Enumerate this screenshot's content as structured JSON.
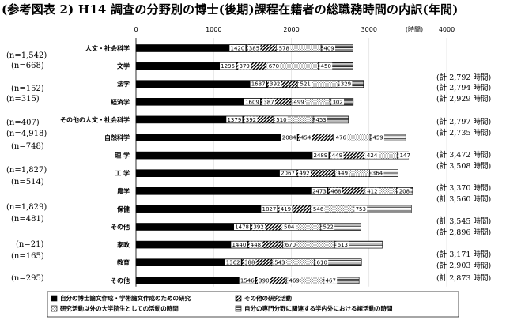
{
  "title": "(参考図表 2)  H14 調査の分野別の博士(後期)課程在籍者の総職務時間の内訳(年間)",
  "chart_data": {
    "type": "bar",
    "orientation": "horizontal",
    "stacked": true,
    "title": "(参考図表 2)  H14 調査の分野別の博士(後期)課程在籍者の総職務時間の内訳(年間)",
    "axis_unit": "(時間)",
    "xlim": [
      0,
      4000
    ],
    "xticks": [
      "0",
      "1000",
      "2000",
      "3000",
      "4000"
    ],
    "legend_position": "bottom",
    "categories": [
      "人文・社会科学",
      "文学",
      "法学",
      "経済学",
      "その他の人文・社会科学",
      "自然科学",
      "理 学",
      "工 学",
      "農学",
      "保健",
      "その他",
      "家政",
      "教育",
      "その他"
    ],
    "n_labels": [
      "(n=1,542)",
      "(n=668)",
      "(n=152)",
      "(n=315)",
      "(n=407)",
      "(n=4,918)",
      "(n=748)",
      "(n=1,827)",
      "(n=514)",
      "(n=1,829)",
      "(n=481)",
      "(n=21)",
      "(n=165)",
      "(n=295)"
    ],
    "totals": [
      "(計 2,792 時間)",
      "(計 2,794 時間)",
      "(計 2,929 時間)",
      "(計 2,797 時間)",
      "(計 2,735 時間)",
      "(計 3,472 時間)",
      "(計 3,508 時間)",
      "(計 3,370 時間)",
      "(計 3,560 時間)",
      "(計 3,545 時間)",
      "(計 2,896 時間)",
      "(計 3,171 時間)",
      "(計 2,903 時間)",
      "(計 2,873 時間)"
    ],
    "series": [
      {
        "name": "自分の博士論文作成・学術論文作成のための研究",
        "values": [
          1420,
          1295,
          1687,
          1609,
          1379,
          2084,
          2489,
          2067,
          2473,
          1827,
          1478,
          1440,
          1362,
          1546
        ]
      },
      {
        "name": "その他の研究活動",
        "values": [
          385,
          379,
          392,
          387,
          392,
          454,
          449,
          492,
          468,
          419,
          392,
          448,
          388,
          390
        ]
      },
      {
        "name": "研究活動以外の大学院生としての活動の時間",
        "values": [
          578,
          670,
          521,
          499,
          510,
          476,
          424,
          449,
          412,
          546,
          504,
          670,
          543,
          469
        ]
      },
      {
        "name": "自分の専門分野に関連する学内外における諸活動の時間",
        "values": [
          409,
          450,
          329,
          302,
          453,
          459,
          147,
          364,
          208,
          753,
          522,
          613,
          610,
          467
        ]
      }
    ]
  }
}
